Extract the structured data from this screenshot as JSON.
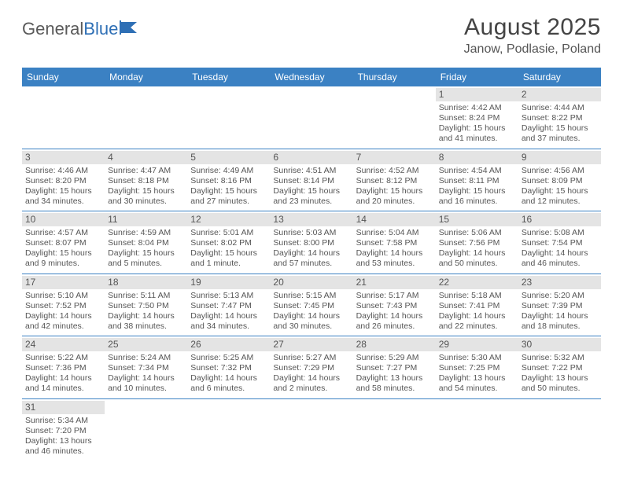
{
  "logo": {
    "text1": "General",
    "text2": "Blue"
  },
  "title": "August 2025",
  "subtitle": "Janow, Podlasie, Poland",
  "colors": {
    "header_bg": "#3b81c3",
    "header_text": "#ffffff",
    "daynum_bg": "#e4e4e4",
    "row_border": "#3b81c3",
    "body_text": "#555555",
    "logo_gray": "#5a5a5a",
    "logo_blue": "#2e6fb5"
  },
  "weekdays": [
    "Sunday",
    "Monday",
    "Tuesday",
    "Wednesday",
    "Thursday",
    "Friday",
    "Saturday"
  ],
  "weeks": [
    [
      null,
      null,
      null,
      null,
      null,
      {
        "d": "1",
        "sr": "Sunrise: 4:42 AM",
        "ss": "Sunset: 8:24 PM",
        "dl1": "Daylight: 15 hours",
        "dl2": "and 41 minutes."
      },
      {
        "d": "2",
        "sr": "Sunrise: 4:44 AM",
        "ss": "Sunset: 8:22 PM",
        "dl1": "Daylight: 15 hours",
        "dl2": "and 37 minutes."
      }
    ],
    [
      {
        "d": "3",
        "sr": "Sunrise: 4:46 AM",
        "ss": "Sunset: 8:20 PM",
        "dl1": "Daylight: 15 hours",
        "dl2": "and 34 minutes."
      },
      {
        "d": "4",
        "sr": "Sunrise: 4:47 AM",
        "ss": "Sunset: 8:18 PM",
        "dl1": "Daylight: 15 hours",
        "dl2": "and 30 minutes."
      },
      {
        "d": "5",
        "sr": "Sunrise: 4:49 AM",
        "ss": "Sunset: 8:16 PM",
        "dl1": "Daylight: 15 hours",
        "dl2": "and 27 minutes."
      },
      {
        "d": "6",
        "sr": "Sunrise: 4:51 AM",
        "ss": "Sunset: 8:14 PM",
        "dl1": "Daylight: 15 hours",
        "dl2": "and 23 minutes."
      },
      {
        "d": "7",
        "sr": "Sunrise: 4:52 AM",
        "ss": "Sunset: 8:12 PM",
        "dl1": "Daylight: 15 hours",
        "dl2": "and 20 minutes."
      },
      {
        "d": "8",
        "sr": "Sunrise: 4:54 AM",
        "ss": "Sunset: 8:11 PM",
        "dl1": "Daylight: 15 hours",
        "dl2": "and 16 minutes."
      },
      {
        "d": "9",
        "sr": "Sunrise: 4:56 AM",
        "ss": "Sunset: 8:09 PM",
        "dl1": "Daylight: 15 hours",
        "dl2": "and 12 minutes."
      }
    ],
    [
      {
        "d": "10",
        "sr": "Sunrise: 4:57 AM",
        "ss": "Sunset: 8:07 PM",
        "dl1": "Daylight: 15 hours",
        "dl2": "and 9 minutes."
      },
      {
        "d": "11",
        "sr": "Sunrise: 4:59 AM",
        "ss": "Sunset: 8:04 PM",
        "dl1": "Daylight: 15 hours",
        "dl2": "and 5 minutes."
      },
      {
        "d": "12",
        "sr": "Sunrise: 5:01 AM",
        "ss": "Sunset: 8:02 PM",
        "dl1": "Daylight: 15 hours",
        "dl2": "and 1 minute."
      },
      {
        "d": "13",
        "sr": "Sunrise: 5:03 AM",
        "ss": "Sunset: 8:00 PM",
        "dl1": "Daylight: 14 hours",
        "dl2": "and 57 minutes."
      },
      {
        "d": "14",
        "sr": "Sunrise: 5:04 AM",
        "ss": "Sunset: 7:58 PM",
        "dl1": "Daylight: 14 hours",
        "dl2": "and 53 minutes."
      },
      {
        "d": "15",
        "sr": "Sunrise: 5:06 AM",
        "ss": "Sunset: 7:56 PM",
        "dl1": "Daylight: 14 hours",
        "dl2": "and 50 minutes."
      },
      {
        "d": "16",
        "sr": "Sunrise: 5:08 AM",
        "ss": "Sunset: 7:54 PM",
        "dl1": "Daylight: 14 hours",
        "dl2": "and 46 minutes."
      }
    ],
    [
      {
        "d": "17",
        "sr": "Sunrise: 5:10 AM",
        "ss": "Sunset: 7:52 PM",
        "dl1": "Daylight: 14 hours",
        "dl2": "and 42 minutes."
      },
      {
        "d": "18",
        "sr": "Sunrise: 5:11 AM",
        "ss": "Sunset: 7:50 PM",
        "dl1": "Daylight: 14 hours",
        "dl2": "and 38 minutes."
      },
      {
        "d": "19",
        "sr": "Sunrise: 5:13 AM",
        "ss": "Sunset: 7:47 PM",
        "dl1": "Daylight: 14 hours",
        "dl2": "and 34 minutes."
      },
      {
        "d": "20",
        "sr": "Sunrise: 5:15 AM",
        "ss": "Sunset: 7:45 PM",
        "dl1": "Daylight: 14 hours",
        "dl2": "and 30 minutes."
      },
      {
        "d": "21",
        "sr": "Sunrise: 5:17 AM",
        "ss": "Sunset: 7:43 PM",
        "dl1": "Daylight: 14 hours",
        "dl2": "and 26 minutes."
      },
      {
        "d": "22",
        "sr": "Sunrise: 5:18 AM",
        "ss": "Sunset: 7:41 PM",
        "dl1": "Daylight: 14 hours",
        "dl2": "and 22 minutes."
      },
      {
        "d": "23",
        "sr": "Sunrise: 5:20 AM",
        "ss": "Sunset: 7:39 PM",
        "dl1": "Daylight: 14 hours",
        "dl2": "and 18 minutes."
      }
    ],
    [
      {
        "d": "24",
        "sr": "Sunrise: 5:22 AM",
        "ss": "Sunset: 7:36 PM",
        "dl1": "Daylight: 14 hours",
        "dl2": "and 14 minutes."
      },
      {
        "d": "25",
        "sr": "Sunrise: 5:24 AM",
        "ss": "Sunset: 7:34 PM",
        "dl1": "Daylight: 14 hours",
        "dl2": "and 10 minutes."
      },
      {
        "d": "26",
        "sr": "Sunrise: 5:25 AM",
        "ss": "Sunset: 7:32 PM",
        "dl1": "Daylight: 14 hours",
        "dl2": "and 6 minutes."
      },
      {
        "d": "27",
        "sr": "Sunrise: 5:27 AM",
        "ss": "Sunset: 7:29 PM",
        "dl1": "Daylight: 14 hours",
        "dl2": "and 2 minutes."
      },
      {
        "d": "28",
        "sr": "Sunrise: 5:29 AM",
        "ss": "Sunset: 7:27 PM",
        "dl1": "Daylight: 13 hours",
        "dl2": "and 58 minutes."
      },
      {
        "d": "29",
        "sr": "Sunrise: 5:30 AM",
        "ss": "Sunset: 7:25 PM",
        "dl1": "Daylight: 13 hours",
        "dl2": "and 54 minutes."
      },
      {
        "d": "30",
        "sr": "Sunrise: 5:32 AM",
        "ss": "Sunset: 7:22 PM",
        "dl1": "Daylight: 13 hours",
        "dl2": "and 50 minutes."
      }
    ],
    [
      {
        "d": "31",
        "sr": "Sunrise: 5:34 AM",
        "ss": "Sunset: 7:20 PM",
        "dl1": "Daylight: 13 hours",
        "dl2": "and 46 minutes."
      },
      null,
      null,
      null,
      null,
      null,
      null
    ]
  ]
}
